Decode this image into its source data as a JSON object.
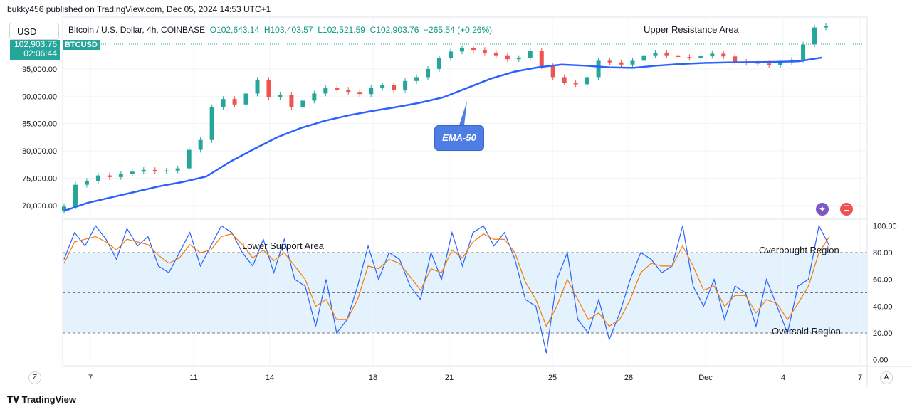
{
  "header": {
    "published": "bukky456 published on TradingView.com, Dec 05, 2024 14:53 UTC+1"
  },
  "toolbar": {
    "currency": "USD",
    "z_label": "Z",
    "a_label": "A"
  },
  "symbol": {
    "name": "Bitcoin / U.S. Dollar, 4h, COINBASE",
    "open": "O102,643.14",
    "high": "H103,403.57",
    "low": "L102,521.59",
    "close": "C102,903.76",
    "change": "+265.54 (+0.26%)",
    "ticker": "BTCUSD",
    "price_tag": "102,903.76",
    "countdown": "02:06:44"
  },
  "annotations": {
    "upper_resistance": "Upper Resistance Area",
    "lower_support": "Lower Support Area",
    "overbought": "Overbought Region",
    "oversold": "Oversold Region",
    "ema_label": "EMA-50"
  },
  "footer": {
    "brand": "TradingView"
  },
  "colors": {
    "up": "#26a69a",
    "down": "#ef5350",
    "ema": "#2962ff",
    "stoch_k": "#2962ff",
    "stoch_d": "#f57c00",
    "band": "#e3f2fd"
  },
  "chart_data": [
    {
      "type": "line",
      "title": "",
      "y_ticks": [
        "70,000.00",
        "75,000.00",
        "80,000.00",
        "85,000.00",
        "90,000.00",
        "95,000.00"
      ],
      "ylim": [
        67500,
        104500
      ],
      "x_ticks": [
        "7",
        "11",
        "14",
        "18",
        "21",
        "25",
        "28",
        "Dec",
        "4",
        "7"
      ],
      "series": [
        {
          "name": "",
          "kind": "candles-close",
          "values": [
            69800,
            73800,
            74500,
            75500,
            75200,
            75800,
            76200,
            76500,
            76300,
            76400,
            76800,
            80200,
            82000,
            88000,
            89500,
            88500,
            90500,
            93000,
            89800,
            90300,
            88000,
            89200,
            90500,
            91500,
            91200,
            90800,
            90400,
            91500,
            92000,
            91200,
            92800,
            93500,
            95000,
            97000,
            98200,
            98800,
            98500,
            98000,
            97500,
            96800,
            97000,
            98300,
            95500,
            93500,
            92500,
            92200,
            93500,
            96500,
            96200,
            95800,
            96500,
            97500,
            98000,
            97500,
            97200,
            97000,
            97400,
            97800,
            97300,
            96300,
            96100,
            96000,
            95700,
            96200,
            96700,
            99500,
            102600,
            102900
          ]
        },
        {
          "name": "EMA-50",
          "kind": "ema",
          "values": [
            69000,
            70500,
            71500,
            72500,
            73500,
            74300,
            75300,
            78000,
            80300,
            82500,
            84200,
            85500,
            86500,
            87300,
            88000,
            88800,
            89800,
            91500,
            93200,
            94500,
            95300,
            95800,
            95600,
            95300,
            95200,
            95600,
            95900,
            96100,
            96200,
            96250,
            96300,
            96400,
            97100
          ]
        }
      ]
    },
    {
      "type": "line",
      "title": "",
      "y_ticks": [
        "100.00",
        "80.00",
        "60.00",
        "40.00",
        "20.00",
        "0.00"
      ],
      "ylim": [
        -5,
        105
      ],
      "bands": [
        20,
        50,
        80
      ],
      "series": [
        {
          "name": "",
          "color": "stoch_k",
          "values": [
            75,
            95,
            85,
            100,
            90,
            75,
            98,
            85,
            92,
            70,
            65,
            80,
            95,
            70,
            85,
            100,
            95,
            80,
            70,
            90,
            65,
            90,
            60,
            55,
            25,
            60,
            20,
            30,
            55,
            85,
            60,
            80,
            75,
            55,
            45,
            80,
            60,
            95,
            70,
            95,
            100,
            85,
            95,
            75,
            45,
            40,
            5,
            60,
            80,
            30,
            20,
            45,
            15,
            35,
            60,
            80,
            75,
            65,
            70,
            100,
            55,
            40,
            60,
            30,
            55,
            50,
            25,
            60,
            40,
            20,
            55,
            60,
            100,
            85
          ]
        },
        {
          "name": "",
          "color": "stoch_d",
          "values": [
            72,
            88,
            90,
            92,
            88,
            82,
            90,
            88,
            86,
            78,
            72,
            76,
            86,
            80,
            82,
            92,
            94,
            86,
            76,
            82,
            74,
            80,
            70,
            60,
            40,
            45,
            30,
            30,
            45,
            70,
            68,
            75,
            72,
            62,
            52,
            68,
            65,
            82,
            76,
            88,
            94,
            90,
            90,
            80,
            58,
            45,
            25,
            40,
            60,
            45,
            30,
            35,
            25,
            30,
            45,
            65,
            72,
            70,
            70,
            85,
            70,
            52,
            55,
            40,
            48,
            48,
            35,
            45,
            42,
            30,
            42,
            55,
            80,
            92
          ]
        }
      ]
    }
  ]
}
